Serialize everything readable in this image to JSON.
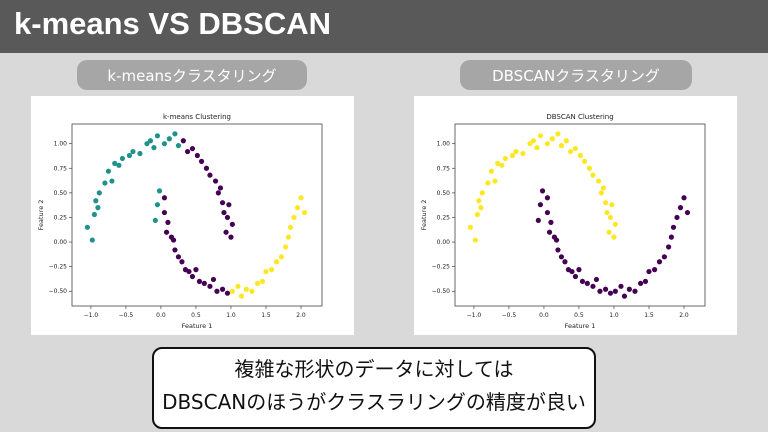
{
  "slide": {
    "title": "k-means VS DBSCAN",
    "left_label": "k-meansクラスタリング",
    "right_label": "DBSCANクラスタリング",
    "note_line1": "複雑な形状のデータに対しては",
    "note_line2": "DBSCANのほうがクラスラリングの精度が良い"
  },
  "colors": [
    "#21918c",
    "#440154",
    "#fde725"
  ],
  "chart_data": [
    {
      "type": "scatter",
      "title": "k-means Clustering",
      "xlabel": "Feature 1",
      "ylabel": "Feature 2",
      "xlim": [
        -1.27,
        2.3
      ],
      "ylim": [
        -0.65,
        1.2
      ],
      "xticks": [
        "-1.0",
        "-0.5",
        "0.0",
        "0.5",
        "1.0",
        "1.5",
        "2.0"
      ],
      "yticks": [
        "-0.50",
        "-0.25",
        "0.00",
        "0.25",
        "0.50",
        "0.75",
        "1.00"
      ],
      "points": [
        [
          -1.05,
          0.15,
          0
        ],
        [
          -0.98,
          0.02,
          0
        ],
        [
          -0.95,
          0.28,
          0
        ],
        [
          -0.93,
          0.42,
          0
        ],
        [
          -0.9,
          0.35,
          0
        ],
        [
          -0.88,
          0.5,
          0
        ],
        [
          -0.8,
          0.6,
          0
        ],
        [
          -0.75,
          0.72,
          0
        ],
        [
          -0.7,
          0.62,
          0
        ],
        [
          -0.66,
          0.8,
          0
        ],
        [
          -0.6,
          0.78,
          0
        ],
        [
          -0.55,
          0.85,
          0
        ],
        [
          -0.45,
          0.88,
          0
        ],
        [
          -0.4,
          0.92,
          0
        ],
        [
          -0.3,
          0.9,
          0
        ],
        [
          -0.2,
          1.0,
          0
        ],
        [
          -0.15,
          1.03,
          0
        ],
        [
          -0.1,
          0.96,
          0
        ],
        [
          -0.05,
          1.08,
          0
        ],
        [
          0.05,
          1.0,
          0
        ],
        [
          0.12,
          1.05,
          0
        ],
        [
          0.2,
          1.1,
          0
        ],
        [
          0.25,
          0.98,
          0
        ],
        [
          0.32,
          1.03,
          1
        ],
        [
          0.38,
          0.92,
          1
        ],
        [
          0.45,
          0.95,
          1
        ],
        [
          0.52,
          0.88,
          1
        ],
        [
          0.58,
          0.82,
          1
        ],
        [
          0.65,
          0.75,
          1
        ],
        [
          0.7,
          0.68,
          1
        ],
        [
          0.78,
          0.62,
          1
        ],
        [
          0.82,
          0.5,
          1
        ],
        [
          0.85,
          0.55,
          1
        ],
        [
          0.88,
          0.4,
          1
        ],
        [
          0.9,
          0.3,
          1
        ],
        [
          0.95,
          0.25,
          1
        ],
        [
          0.93,
          0.1,
          1
        ],
        [
          1.0,
          0.05,
          1
        ],
        [
          1.02,
          0.18,
          1
        ],
        [
          0.97,
          0.38,
          1
        ],
        [
          -0.02,
          0.52,
          0
        ],
        [
          -0.05,
          0.38,
          0
        ],
        [
          -0.08,
          0.22,
          0
        ],
        [
          0.05,
          0.45,
          1
        ],
        [
          0.05,
          0.3,
          1
        ],
        [
          0.1,
          0.2,
          1
        ],
        [
          0.08,
          0.1,
          1
        ],
        [
          0.15,
          0.05,
          1
        ],
        [
          0.2,
          -0.08,
          1
        ],
        [
          0.18,
          0.02,
          1
        ],
        [
          0.25,
          -0.15,
          1
        ],
        [
          0.3,
          -0.2,
          1
        ],
        [
          0.35,
          -0.28,
          1
        ],
        [
          0.4,
          -0.3,
          1
        ],
        [
          0.45,
          -0.35,
          1
        ],
        [
          0.5,
          -0.28,
          1
        ],
        [
          0.55,
          -0.4,
          1
        ],
        [
          0.62,
          -0.42,
          1
        ],
        [
          0.7,
          -0.45,
          1
        ],
        [
          0.75,
          -0.38,
          1
        ],
        [
          0.8,
          -0.5,
          1
        ],
        [
          0.88,
          -0.48,
          1
        ],
        [
          0.95,
          -0.52,
          1
        ],
        [
          1.02,
          -0.5,
          2
        ],
        [
          1.1,
          -0.45,
          2
        ],
        [
          1.15,
          -0.55,
          2
        ],
        [
          1.22,
          -0.48,
          2
        ],
        [
          1.3,
          -0.5,
          2
        ],
        [
          1.38,
          -0.42,
          2
        ],
        [
          1.45,
          -0.4,
          2
        ],
        [
          1.5,
          -0.3,
          2
        ],
        [
          1.58,
          -0.28,
          2
        ],
        [
          1.65,
          -0.2,
          2
        ],
        [
          1.72,
          -0.15,
          2
        ],
        [
          1.78,
          -0.05,
          2
        ],
        [
          1.82,
          0.05,
          2
        ],
        [
          1.85,
          0.15,
          2
        ],
        [
          1.9,
          0.25,
          2
        ],
        [
          1.95,
          0.35,
          2
        ],
        [
          2.0,
          0.45,
          2
        ],
        [
          2.05,
          0.3,
          2
        ]
      ]
    },
    {
      "type": "scatter",
      "title": "DBSCAN Clustering",
      "xlabel": "Feature 1",
      "ylabel": "Feature 2",
      "xlim": [
        -1.27,
        2.3
      ],
      "ylim": [
        -0.65,
        1.2
      ],
      "xticks": [
        "-1.0",
        "-0.5",
        "0.0",
        "0.5",
        "1.0",
        "1.5",
        "2.0"
      ],
      "yticks": [
        "-0.50",
        "-0.25",
        "0.00",
        "0.25",
        "0.50",
        "0.75",
        "1.00"
      ],
      "points": [
        [
          -1.05,
          0.15,
          2
        ],
        [
          -0.98,
          0.02,
          2
        ],
        [
          -0.95,
          0.28,
          2
        ],
        [
          -0.93,
          0.42,
          2
        ],
        [
          -0.9,
          0.35,
          2
        ],
        [
          -0.88,
          0.5,
          2
        ],
        [
          -0.8,
          0.6,
          2
        ],
        [
          -0.75,
          0.72,
          2
        ],
        [
          -0.7,
          0.62,
          2
        ],
        [
          -0.66,
          0.8,
          2
        ],
        [
          -0.6,
          0.78,
          2
        ],
        [
          -0.55,
          0.85,
          2
        ],
        [
          -0.45,
          0.88,
          2
        ],
        [
          -0.4,
          0.92,
          2
        ],
        [
          -0.3,
          0.9,
          2
        ],
        [
          -0.2,
          1.0,
          2
        ],
        [
          -0.15,
          1.03,
          2
        ],
        [
          -0.1,
          0.96,
          2
        ],
        [
          -0.05,
          1.08,
          2
        ],
        [
          0.05,
          1.0,
          2
        ],
        [
          0.12,
          1.05,
          2
        ],
        [
          0.2,
          1.1,
          2
        ],
        [
          0.25,
          0.98,
          2
        ],
        [
          0.32,
          1.03,
          2
        ],
        [
          0.38,
          0.92,
          2
        ],
        [
          0.45,
          0.95,
          2
        ],
        [
          0.52,
          0.88,
          2
        ],
        [
          0.58,
          0.82,
          2
        ],
        [
          0.65,
          0.75,
          2
        ],
        [
          0.7,
          0.68,
          2
        ],
        [
          0.78,
          0.62,
          2
        ],
        [
          0.82,
          0.5,
          2
        ],
        [
          0.85,
          0.55,
          2
        ],
        [
          0.88,
          0.4,
          2
        ],
        [
          0.9,
          0.3,
          2
        ],
        [
          0.95,
          0.25,
          2
        ],
        [
          0.93,
          0.1,
          2
        ],
        [
          1.0,
          0.05,
          2
        ],
        [
          1.02,
          0.18,
          2
        ],
        [
          0.97,
          0.38,
          2
        ],
        [
          -0.02,
          0.52,
          1
        ],
        [
          -0.05,
          0.38,
          1
        ],
        [
          -0.08,
          0.22,
          1
        ],
        [
          0.05,
          0.45,
          1
        ],
        [
          0.05,
          0.3,
          1
        ],
        [
          0.1,
          0.2,
          1
        ],
        [
          0.08,
          0.1,
          1
        ],
        [
          0.15,
          0.05,
          1
        ],
        [
          0.2,
          -0.08,
          1
        ],
        [
          0.18,
          0.02,
          1
        ],
        [
          0.25,
          -0.15,
          1
        ],
        [
          0.3,
          -0.2,
          1
        ],
        [
          0.35,
          -0.28,
          1
        ],
        [
          0.4,
          -0.3,
          1
        ],
        [
          0.45,
          -0.35,
          1
        ],
        [
          0.5,
          -0.28,
          1
        ],
        [
          0.55,
          -0.4,
          1
        ],
        [
          0.62,
          -0.42,
          1
        ],
        [
          0.7,
          -0.45,
          1
        ],
        [
          0.75,
          -0.38,
          1
        ],
        [
          0.8,
          -0.5,
          1
        ],
        [
          0.88,
          -0.48,
          1
        ],
        [
          0.95,
          -0.52,
          1
        ],
        [
          1.02,
          -0.5,
          1
        ],
        [
          1.1,
          -0.45,
          1
        ],
        [
          1.15,
          -0.55,
          1
        ],
        [
          1.22,
          -0.48,
          1
        ],
        [
          1.3,
          -0.5,
          1
        ],
        [
          1.38,
          -0.42,
          1
        ],
        [
          1.45,
          -0.4,
          1
        ],
        [
          1.5,
          -0.3,
          1
        ],
        [
          1.58,
          -0.28,
          1
        ],
        [
          1.65,
          -0.2,
          1
        ],
        [
          1.72,
          -0.15,
          1
        ],
        [
          1.78,
          -0.05,
          1
        ],
        [
          1.82,
          0.05,
          1
        ],
        [
          1.85,
          0.15,
          1
        ],
        [
          1.9,
          0.25,
          1
        ],
        [
          1.95,
          0.35,
          1
        ],
        [
          2.0,
          0.45,
          1
        ],
        [
          2.05,
          0.3,
          1
        ]
      ]
    }
  ]
}
